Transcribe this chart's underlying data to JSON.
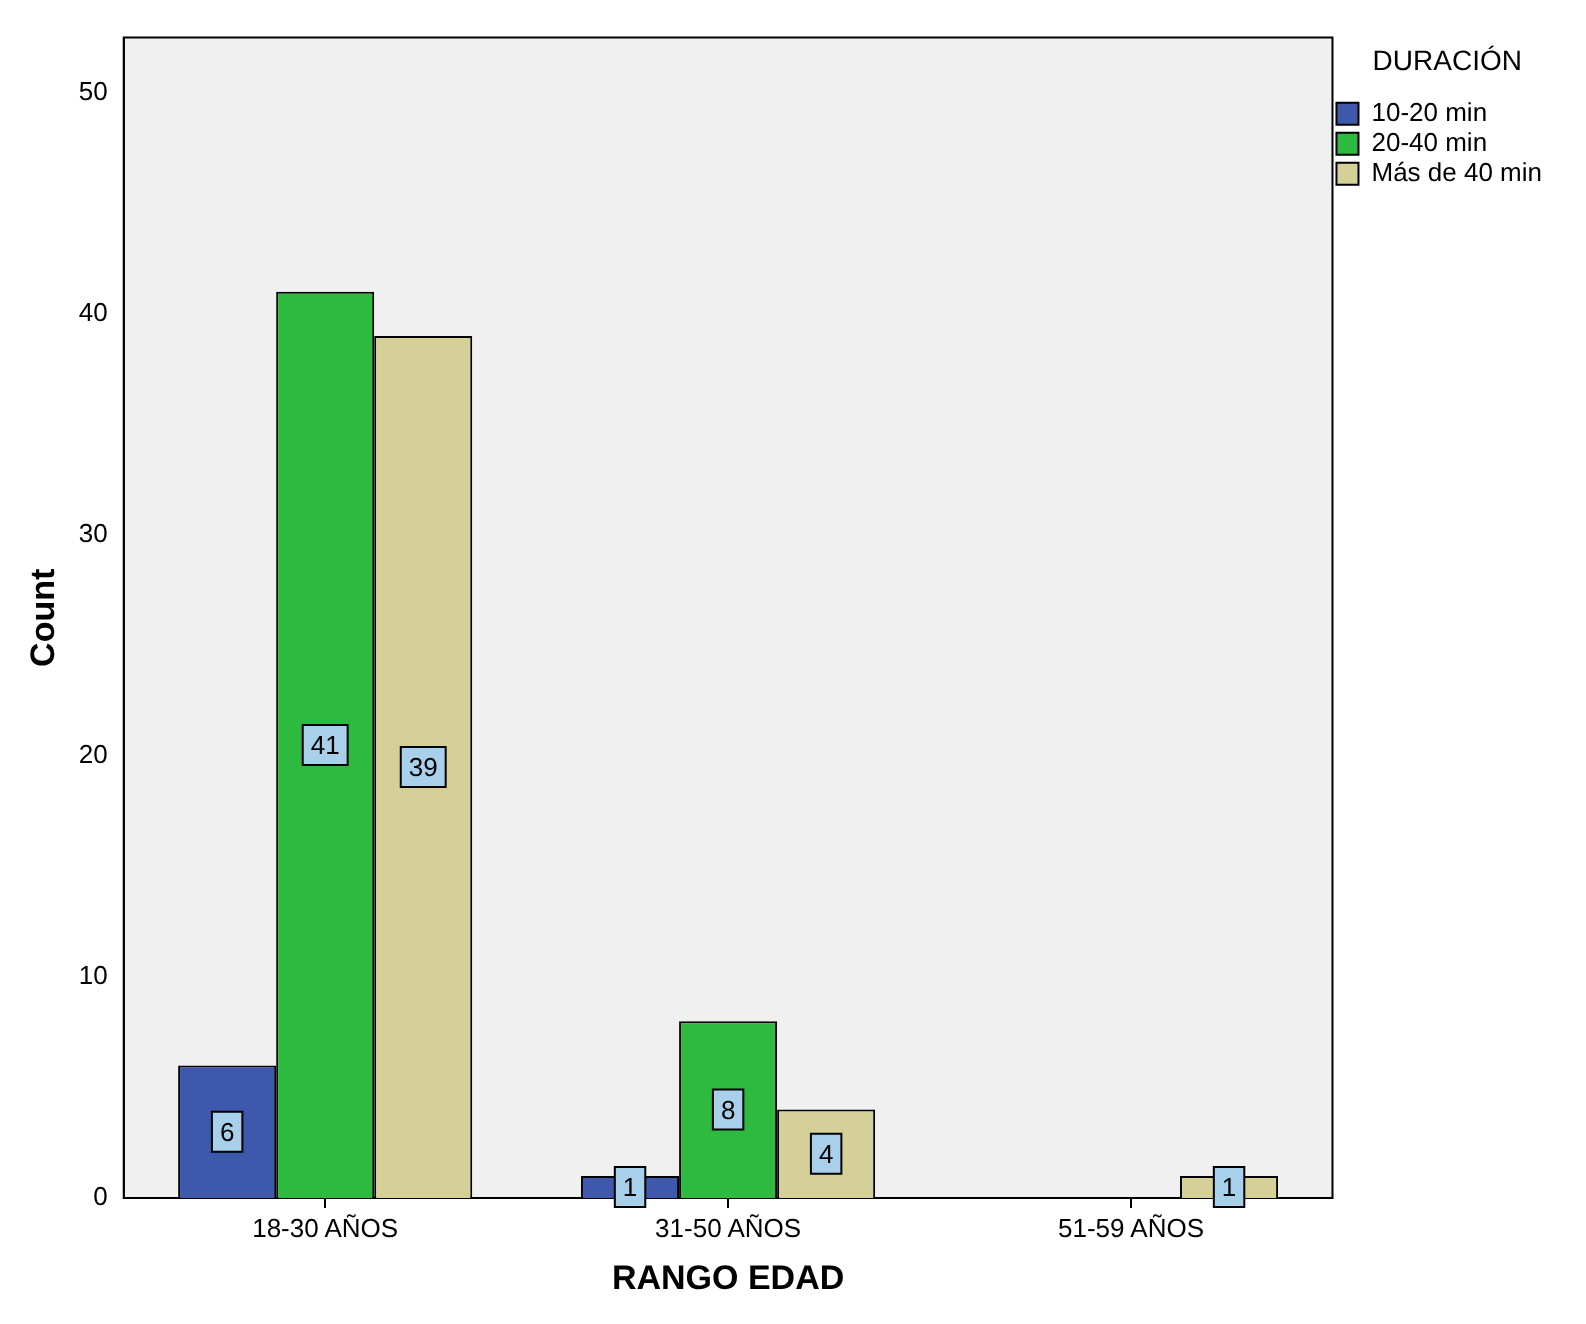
{
  "chart_data": {
    "type": "bar",
    "xlabel": "RANGO EDAD",
    "ylabel": "Count",
    "legend_title": "DURACIÓN",
    "categories": [
      "18-30 AÑOS",
      "31-50 AÑOS",
      "51-59 AÑOS"
    ],
    "series": [
      {
        "name": "10-20 min",
        "color": "#3e58ac",
        "values": [
          6,
          1,
          null
        ]
      },
      {
        "name": "20-40 min",
        "color": "#2dba3f",
        "values": [
          41,
          8,
          null
        ]
      },
      {
        "name": "Más de 40 min",
        "color": "#d5cf98",
        "values": [
          39,
          4,
          1
        ]
      }
    ],
    "ylim": [
      0,
      52.5
    ],
    "yticks": [
      0,
      10,
      20,
      30,
      40,
      50
    ],
    "grid": false,
    "legend": "top right",
    "data_labels": true
  }
}
